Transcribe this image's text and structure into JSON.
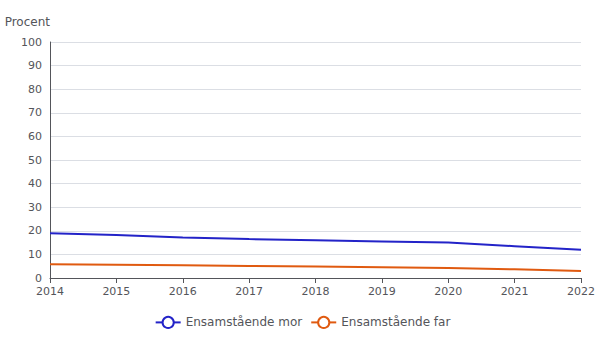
{
  "chart_data": {
    "type": "line",
    "ylabel": "Procent",
    "x": [
      2014,
      2015,
      2016,
      2017,
      2018,
      2019,
      2020,
      2021,
      2022
    ],
    "series": [
      {
        "name": "Ensamstående mor",
        "color": "#2323c8",
        "values": [
          19.0,
          18.2,
          17.2,
          16.5,
          16.0,
          15.5,
          15.0,
          13.5,
          12.0
        ]
      },
      {
        "name": "Ensamstående far",
        "color": "#e05a10",
        "values": [
          5.8,
          5.6,
          5.4,
          5.1,
          4.9,
          4.6,
          4.2,
          3.7,
          3.0
        ]
      }
    ],
    "xlim": [
      2014,
      2022
    ],
    "xticks": [
      2014,
      2015,
      2016,
      2017,
      2018,
      2019,
      2020,
      2021,
      2022
    ],
    "ylim": [
      0,
      100
    ],
    "yticks": [
      0,
      10,
      20,
      30,
      40,
      50,
      60,
      70,
      80,
      90,
      100
    ],
    "grid": true,
    "legend": "bottom"
  }
}
